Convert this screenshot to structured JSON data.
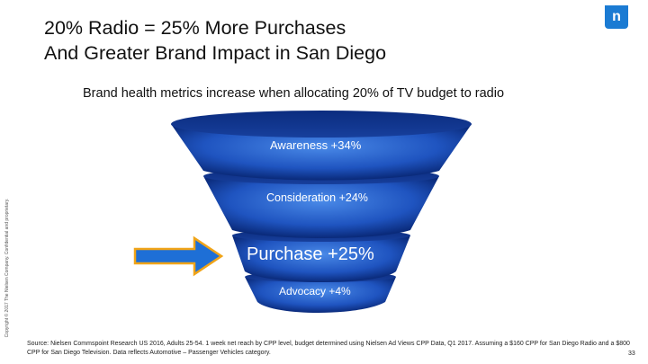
{
  "slide": {
    "title_line1": "20% Radio = 25% More Purchases",
    "title_line2": "And Greater Brand Impact in San Diego",
    "subtitle": "Brand health metrics increase when allocating 20% of TV budget to radio",
    "logo_text": "n",
    "copyright": "Copyright © 2017 The Nielsen Company. Confidential and proprietary.",
    "source": "Source: Nielsen Commspoint Research US 2016, Adults 25-54. 1 week net reach by CPP level, budget determined using Nielsen Ad Views CPP Data, Q1 2017. Assuming a $160 CPP for San Diego Radio and a $800 CPP for San Diego Television. Data reflects Automotive – Passenger Vehicles category.",
    "page_number": "33"
  },
  "funnel": {
    "levels": [
      {
        "label": "Awareness +34%"
      },
      {
        "label": "Consideration +24%"
      },
      {
        "label": "Purchase +25%"
      },
      {
        "label": "Advocacy +4%"
      }
    ],
    "colors": {
      "dark_blue": "#0a2a7a",
      "mid_blue": "#1f54c0",
      "light_blue": "#4a8ae8"
    }
  },
  "arrow": {
    "fill": "#1e6fd6",
    "stroke": "#f0a418",
    "icon": "right-arrow-icon"
  }
}
